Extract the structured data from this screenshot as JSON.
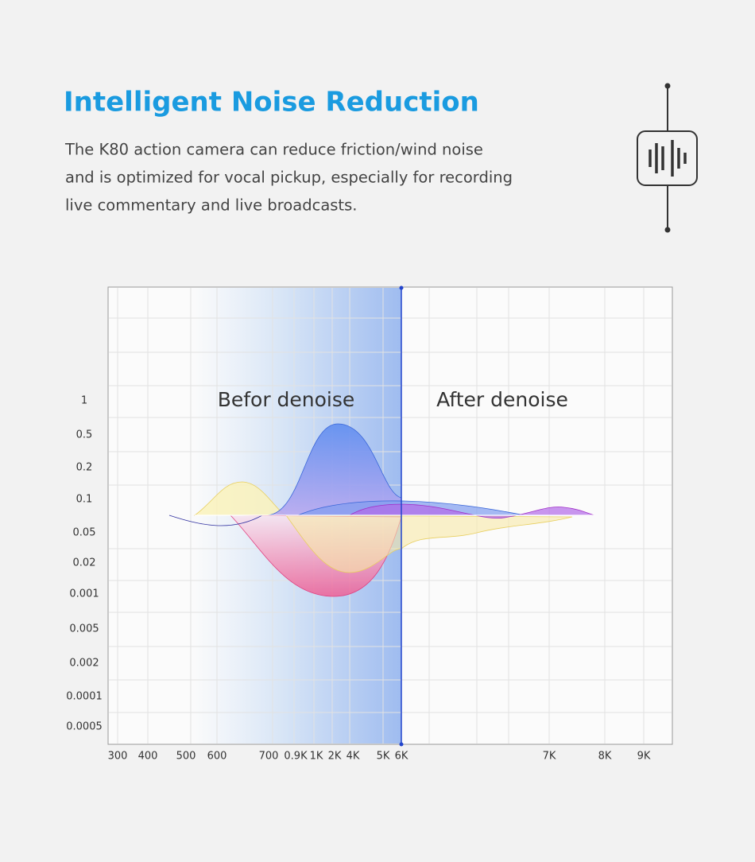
{
  "header": {
    "title": "Intelligent Noise Reduction",
    "description": [
      "The K80 action camera can reduce friction/wind noise",
      "and is optimized for vocal pickup, especially for recording",
      "live commentary and live broadcasts."
    ]
  },
  "graphic": {
    "before_label": "Befor denoise",
    "after_label": "After denoise",
    "y_labels": [
      "1",
      "0.5",
      "0.2",
      "0.1",
      "0.05",
      "0.02",
      "0.001",
      "0.005",
      "0.002",
      "0.0001",
      "0.0005"
    ],
    "x_labels": [
      "300",
      "400",
      "500",
      "600",
      "700",
      "0.9K",
      "1K",
      "2K",
      "4K",
      "5K",
      "6K",
      "7K",
      "8K",
      "9K"
    ]
  }
}
